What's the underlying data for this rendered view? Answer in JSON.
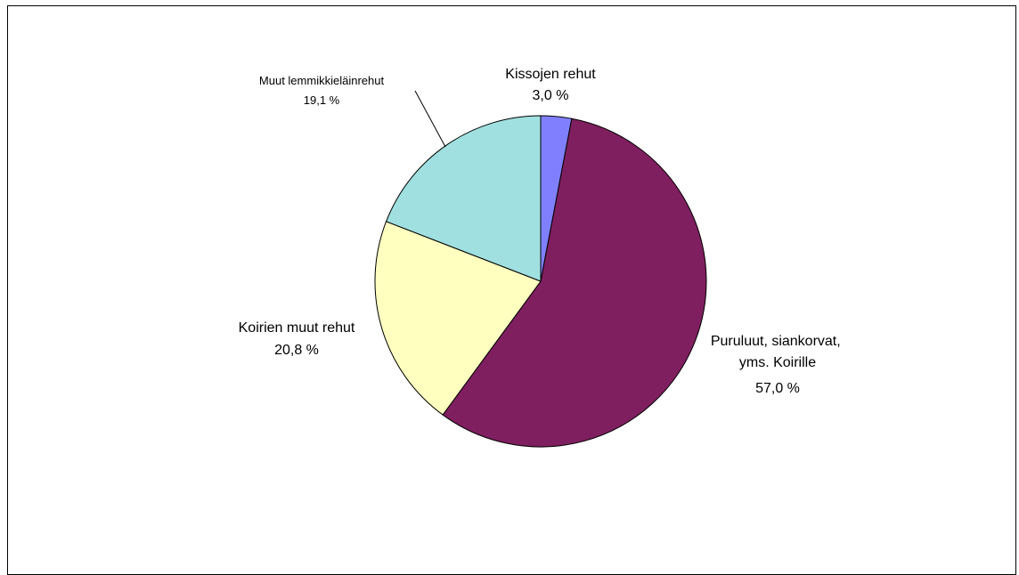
{
  "chart_data": {
    "type": "pie",
    "title": "",
    "slices": [
      {
        "label": "Kissojen rehut",
        "value_label": "3,0 %",
        "value": 3.0,
        "color": "#8080ff"
      },
      {
        "label": "Puruluut, siankorvat,\nyms. Koirille",
        "value_label": "57,0 %",
        "value": 57.0,
        "color": "#7f1f5f"
      },
      {
        "label": "Koirien muut rehut",
        "value_label": "20,8 %",
        "value": 20.8,
        "color": "#ffffc0"
      },
      {
        "label": "Muut lemmikkieläinrehut",
        "value_label": "19,1 %",
        "value": 19.1,
        "color": "#a0e0e0"
      }
    ],
    "start": "12 o'clock",
    "direction": "clockwise",
    "legend": "none"
  }
}
